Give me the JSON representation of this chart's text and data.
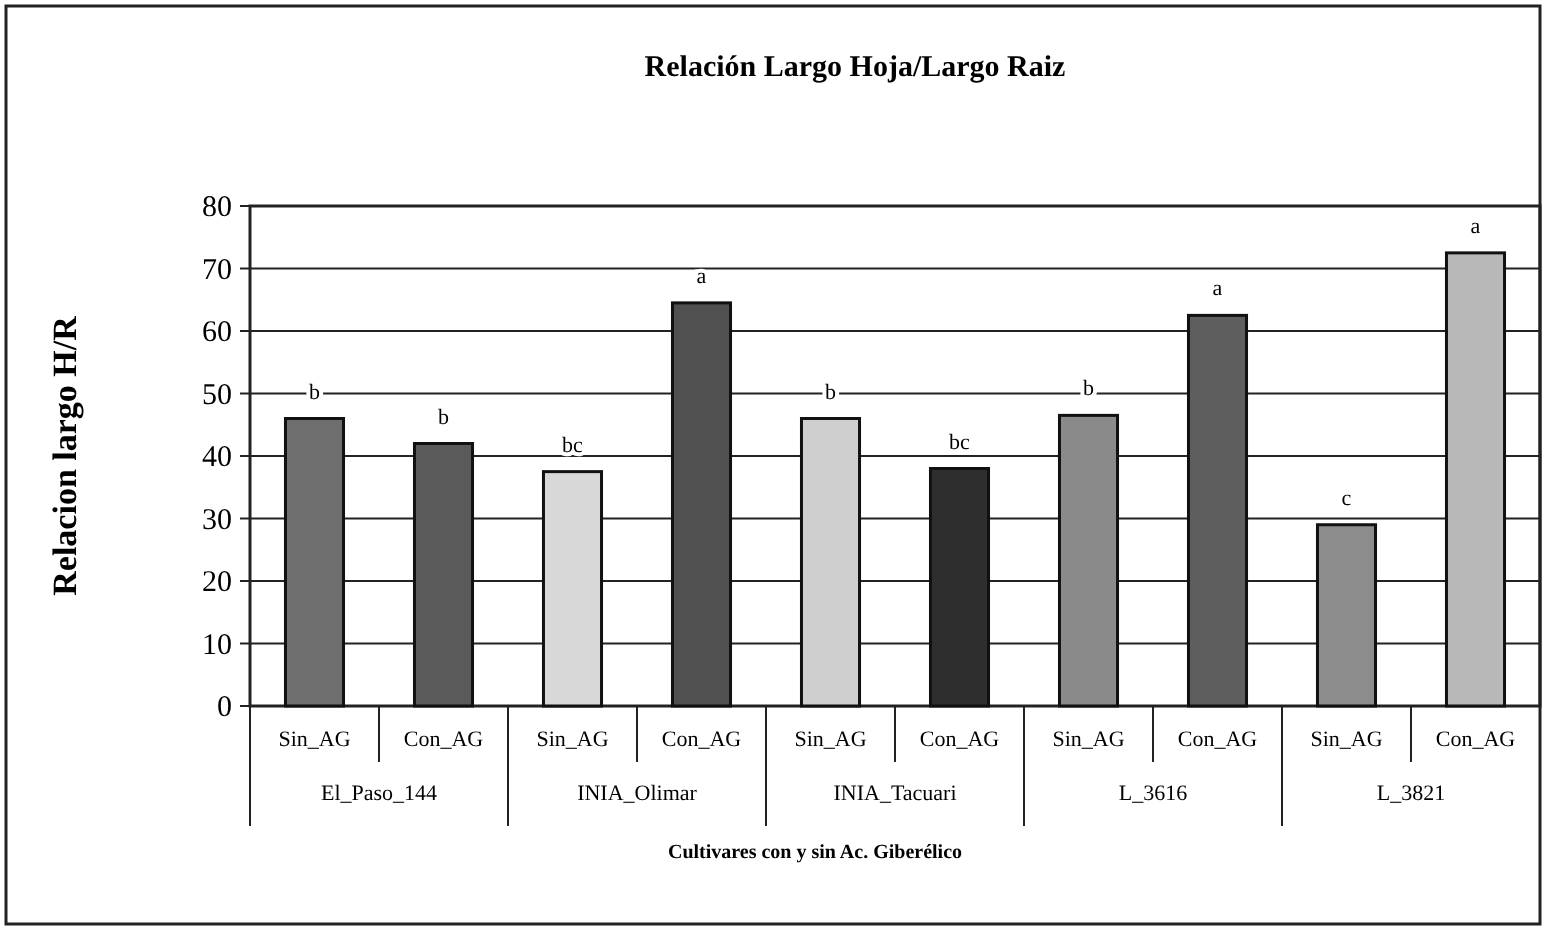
{
  "chart_data": {
    "type": "bar",
    "title": "Relación Largo Hoja/Largo Raiz",
    "ylabel": "Relacion largo H/R",
    "xlabel": "Cultivares con y sin Ac. Giberélico",
    "categories": [
      "Sin_AG",
      "Con_AG",
      "Sin_AG",
      "Con_AG",
      "Sin_AG",
      "Con_AG",
      "Sin_AG",
      "Con_AG",
      "Sin_AG",
      "Con_AG"
    ],
    "values": [
      46,
      42,
      37.5,
      64.5,
      46,
      38,
      46.5,
      62.5,
      29,
      72.5
    ],
    "value_labels": [
      "b",
      "b",
      "bc",
      "a",
      "b",
      "bc",
      "b",
      "a",
      "c",
      "a"
    ],
    "colors": [
      "#6e6e6e",
      "#5a5a5a",
      "#d8d8d8",
      "#505050",
      "#cfcfcf",
      "#2e2e2e",
      "#8a8a8a",
      "#5e5e5e",
      "#8c8c8c",
      "#b8b8b8"
    ],
    "annotations": [
      "El_Paso_144",
      "INIA_Olimar",
      "INIA_Tacuari",
      "L_3616",
      "L_3821"
    ],
    "ylim": [
      0,
      80
    ],
    "yticks": [
      0,
      10,
      20,
      30,
      40,
      50,
      60,
      70,
      80
    ],
    "grid": "y"
  }
}
